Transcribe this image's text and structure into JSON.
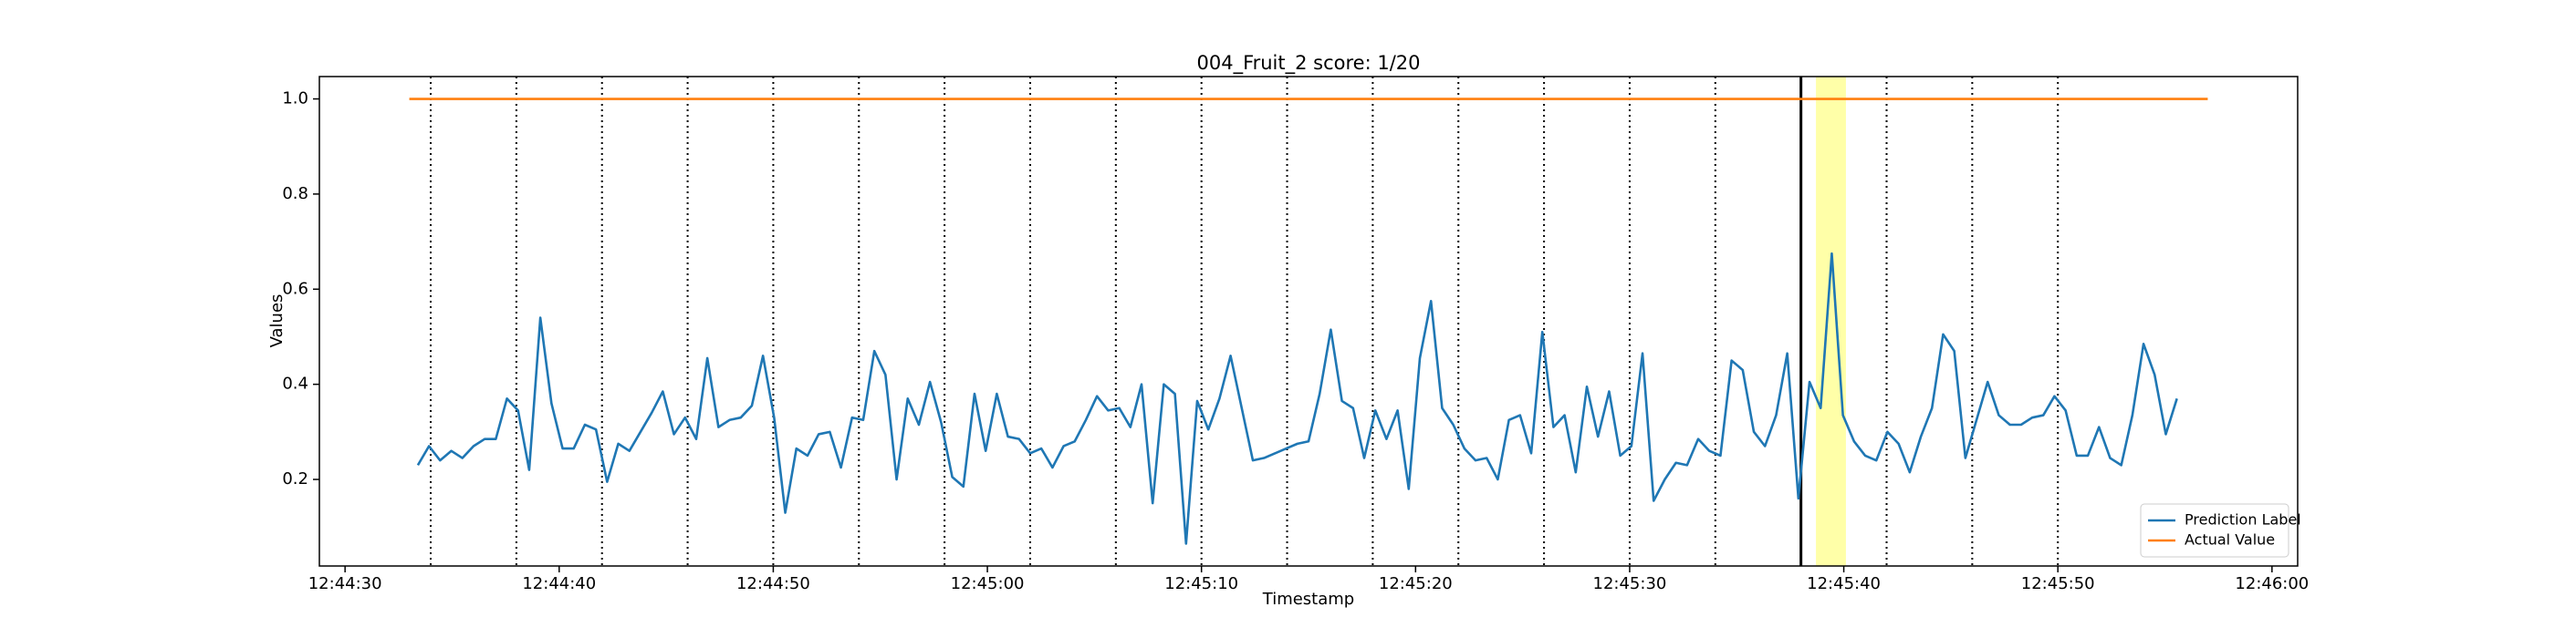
{
  "chart_data": {
    "type": "line",
    "title": "004_Fruit_2 score: 1/20",
    "xlabel": "Timestamp",
    "ylabel": "Values",
    "series": [
      {
        "name": "Prediction Label",
        "color": "#1f77b4",
        "x": [
          3.4,
          3.92,
          4.44,
          4.96,
          5.48,
          6.0,
          6.52,
          7.04,
          7.56,
          8.08,
          8.6,
          9.12,
          9.64,
          10.16,
          10.68,
          11.2,
          11.72,
          12.24,
          12.76,
          13.28,
          13.8,
          14.32,
          14.84,
          15.36,
          15.88,
          16.4,
          16.92,
          17.44,
          17.96,
          18.48,
          19.0,
          19.52,
          20.04,
          20.56,
          21.08,
          21.6,
          22.12,
          22.64,
          23.16,
          23.68,
          24.2,
          24.72,
          25.24,
          25.76,
          26.28,
          26.8,
          27.32,
          27.84,
          28.36,
          28.88,
          29.4,
          29.92,
          30.44,
          30.96,
          31.48,
          32.0,
          32.52,
          33.04,
          33.56,
          34.08,
          34.6,
          35.12,
          35.64,
          36.16,
          36.68,
          37.2,
          37.72,
          38.24,
          38.76,
          39.28,
          39.8,
          40.32,
          40.84,
          41.36,
          41.88,
          42.4,
          42.92,
          43.44,
          43.96,
          44.48,
          45.0,
          45.52,
          46.04,
          46.56,
          47.08,
          47.6,
          48.12,
          48.64,
          49.16,
          49.68,
          50.2,
          50.72,
          51.24,
          51.76,
          52.28,
          52.8,
          53.32,
          53.84,
          54.36,
          54.88,
          55.4,
          55.92,
          56.44,
          56.96,
          57.48,
          58.0,
          58.52,
          59.04,
          59.56,
          60.08,
          60.6,
          61.12,
          61.64,
          62.16,
          62.68,
          63.2,
          63.72,
          64.24,
          64.76,
          65.28,
          65.8,
          66.32,
          66.84,
          67.36,
          67.88,
          68.4,
          68.92,
          69.44,
          69.96,
          70.48,
          71.0,
          71.52,
          72.04,
          72.56,
          73.08,
          73.6,
          74.12,
          74.64,
          75.16,
          75.68,
          76.2,
          76.72,
          77.24,
          77.76,
          78.28,
          78.8,
          79.32,
          79.84,
          80.36,
          80.88,
          81.4,
          81.92,
          82.44,
          82.96,
          83.48,
          84.0,
          84.52,
          85.04,
          85.56
        ],
        "values": [
          0.23,
          0.27,
          0.24,
          0.26,
          0.245,
          0.27,
          0.285,
          0.285,
          0.37,
          0.345,
          0.22,
          0.54,
          0.36,
          0.265,
          0.265,
          0.315,
          0.305,
          0.195,
          0.275,
          0.26,
          0.3,
          0.34,
          0.385,
          0.295,
          0.33,
          0.285,
          0.455,
          0.31,
          0.325,
          0.33,
          0.355,
          0.46,
          0.33,
          0.13,
          0.265,
          0.25,
          0.295,
          0.3,
          0.225,
          0.33,
          0.325,
          0.47,
          0.42,
          0.2,
          0.37,
          0.315,
          0.405,
          0.32,
          0.205,
          0.185,
          0.38,
          0.26,
          0.38,
          0.29,
          0.285,
          0.255,
          0.265,
          0.225,
          0.27,
          0.28,
          0.325,
          0.375,
          0.345,
          0.35,
          0.31,
          0.4,
          0.15,
          0.4,
          0.38,
          0.065,
          0.365,
          0.305,
          0.37,
          0.46,
          0.35,
          0.24,
          0.245,
          0.255,
          0.265,
          0.275,
          0.28,
          0.38,
          0.515,
          0.365,
          0.35,
          0.245,
          0.345,
          0.285,
          0.345,
          0.18,
          0.455,
          0.575,
          0.35,
          0.315,
          0.265,
          0.24,
          0.245,
          0.2,
          0.325,
          0.335,
          0.255,
          0.51,
          0.31,
          0.335,
          0.215,
          0.395,
          0.29,
          0.385,
          0.25,
          0.27,
          0.465,
          0.155,
          0.2,
          0.235,
          0.23,
          0.285,
          0.26,
          0.25,
          0.45,
          0.43,
          0.3,
          0.27,
          0.335,
          0.465,
          0.16,
          0.405,
          0.35,
          0.675,
          0.335,
          0.28,
          0.25,
          0.24,
          0.3,
          0.275,
          0.215,
          0.29,
          0.35,
          0.505,
          0.47,
          0.245,
          0.325,
          0.405,
          0.335,
          0.315,
          0.315,
          0.33,
          0.335,
          0.375,
          0.345,
          0.25,
          0.25,
          0.31,
          0.245,
          0.23,
          0.335,
          0.485,
          0.42,
          0.295,
          0.37
        ]
      },
      {
        "name": "Actual Value",
        "color": "#ff7f0e",
        "x": [
          3,
          87
        ],
        "values": [
          1.0,
          1.0
        ]
      }
    ],
    "dotted_lines": [
      4,
      8,
      12,
      16,
      20,
      24,
      28,
      32,
      36,
      40,
      44,
      48,
      52,
      56,
      60,
      64,
      72,
      76,
      80
    ],
    "solid_line": 68,
    "highlight": [
      68.7,
      70.1
    ],
    "xlim": [
      -1.2,
      91.2
    ],
    "xticks": [
      {
        "value": 0,
        "label": "12:44:30"
      },
      {
        "value": 10,
        "label": "12:44:40"
      },
      {
        "value": 20,
        "label": "12:44:50"
      },
      {
        "value": 30,
        "label": "12:45:00"
      },
      {
        "value": 40,
        "label": "12:45:10"
      },
      {
        "value": 50,
        "label": "12:45:20"
      },
      {
        "value": 60,
        "label": "12:45:30"
      },
      {
        "value": 70,
        "label": "12:45:40"
      },
      {
        "value": 80,
        "label": "12:45:50"
      },
      {
        "value": 90,
        "label": "12:46:00"
      }
    ],
    "ylim": [
      0.018,
      1.047
    ],
    "yticks": [
      {
        "value": 0.2,
        "label": "0.2"
      },
      {
        "value": 0.4,
        "label": "0.4"
      },
      {
        "value": 0.6,
        "label": "0.6"
      },
      {
        "value": 0.8,
        "label": "0.8"
      },
      {
        "value": 1.0,
        "label": "1.0"
      }
    ],
    "legend": "lower right"
  }
}
